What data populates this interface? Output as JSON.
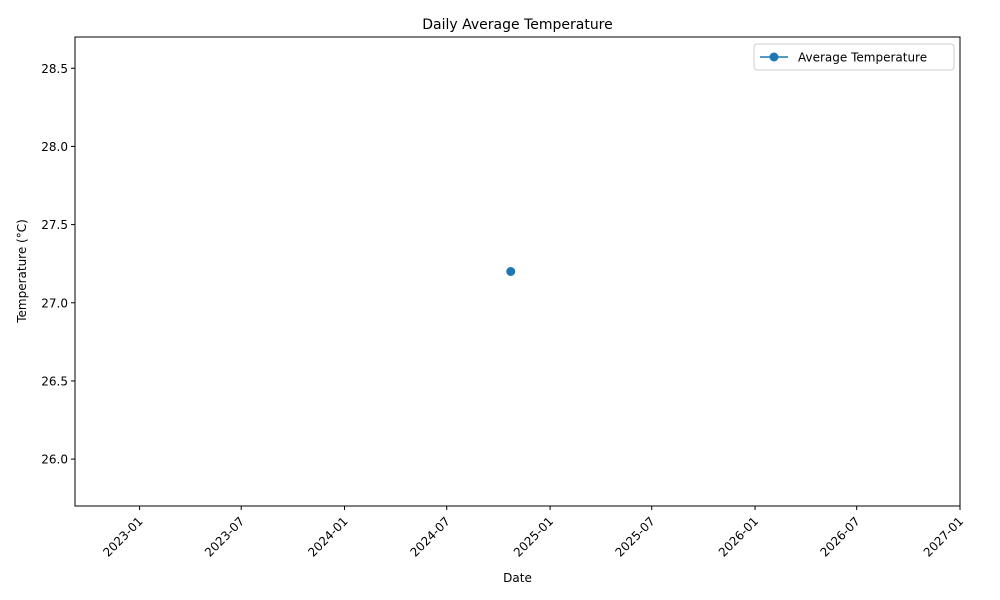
{
  "chart_data": {
    "type": "line",
    "title": "Daily Average Temperature",
    "xlabel": "Date",
    "ylabel": "Temperature (°C)",
    "x_ticks": [
      "2023-01",
      "2023-07",
      "2024-01",
      "2024-07",
      "2025-01",
      "2025-07",
      "2026-01",
      "2026-07",
      "2027-01"
    ],
    "y_ticks": [
      "26.0",
      "26.5",
      "27.0",
      "27.5",
      "28.0",
      "28.5"
    ],
    "xlim": [
      "2022-09-08",
      "2027-01-01"
    ],
    "ylim": [
      25.7,
      28.7
    ],
    "legend_position": "top-right",
    "grid": false,
    "series": [
      {
        "name": "Average Temperature",
        "color": "#1f77b4",
        "marker": "circle",
        "points": [
          {
            "x": "2024-10-23",
            "y": 27.2
          }
        ]
      }
    ]
  }
}
